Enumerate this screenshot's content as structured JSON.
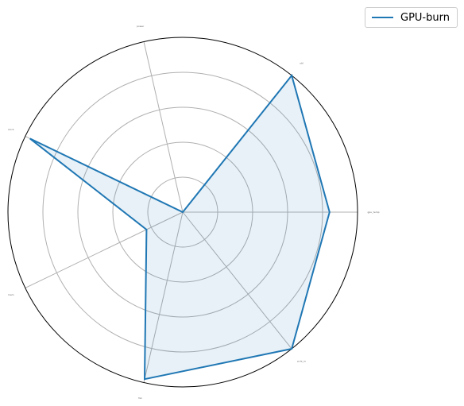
{
  "chart_data": {
    "type": "radar",
    "title": "",
    "categories": [
      "gpu_temp",
      "util",
      "power",
      "clock",
      "mem",
      "fan",
      "pcie_rx"
    ],
    "series": [
      {
        "name": "GPU-burn",
        "values": [
          0.84,
          1.0,
          0.0,
          0.97,
          0.23,
          0.98,
          1.0
        ]
      }
    ],
    "rlim": [
      0,
      1
    ],
    "rticks": [
      0.2,
      0.4,
      0.6,
      0.8
    ],
    "grid": true,
    "legend": "top-right",
    "colors": {
      "line": "#1f77b4",
      "fill": "#1f77b4",
      "grid": "#b0b0b0",
      "frame": "#000000"
    }
  }
}
